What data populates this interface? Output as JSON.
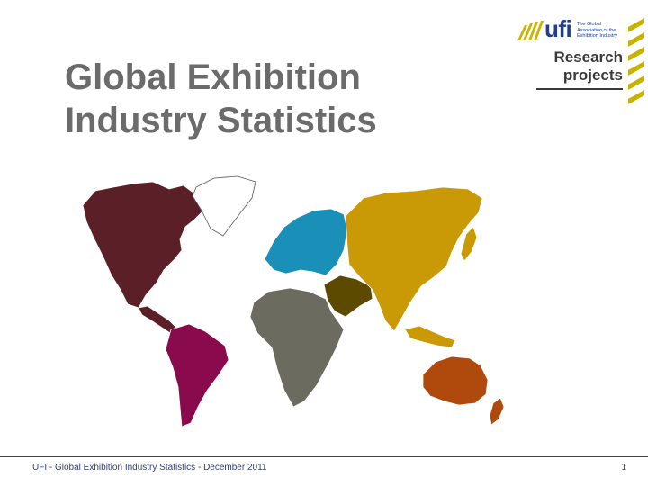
{
  "slide": {
    "title_lines": [
      "Global Exhibition",
      "Industry Statistics"
    ],
    "logo": {
      "wordmark": "ufi",
      "tagline": "The Global Association of the Exhibition Industry",
      "accent_color": "#c8b400",
      "brand_color": "#1d3f8f"
    },
    "badge_lines": [
      "Research",
      "projects"
    ],
    "map": {
      "regions": [
        {
          "name": "north-america",
          "color": "#5a1f27"
        },
        {
          "name": "greenland",
          "color": "#ffffff"
        },
        {
          "name": "south-america",
          "color": "#8a0a4e"
        },
        {
          "name": "europe",
          "color": "#1a8fb8"
        },
        {
          "name": "africa",
          "color": "#6b6b60"
        },
        {
          "name": "middle-east",
          "color": "#5c4a00"
        },
        {
          "name": "asia",
          "color": "#c99a05"
        },
        {
          "name": "oceania",
          "color": "#b04a0c"
        }
      ]
    },
    "footer": {
      "text": "UFI - Global Exhibition Industry Statistics - December 2011",
      "page_number": "1"
    }
  }
}
